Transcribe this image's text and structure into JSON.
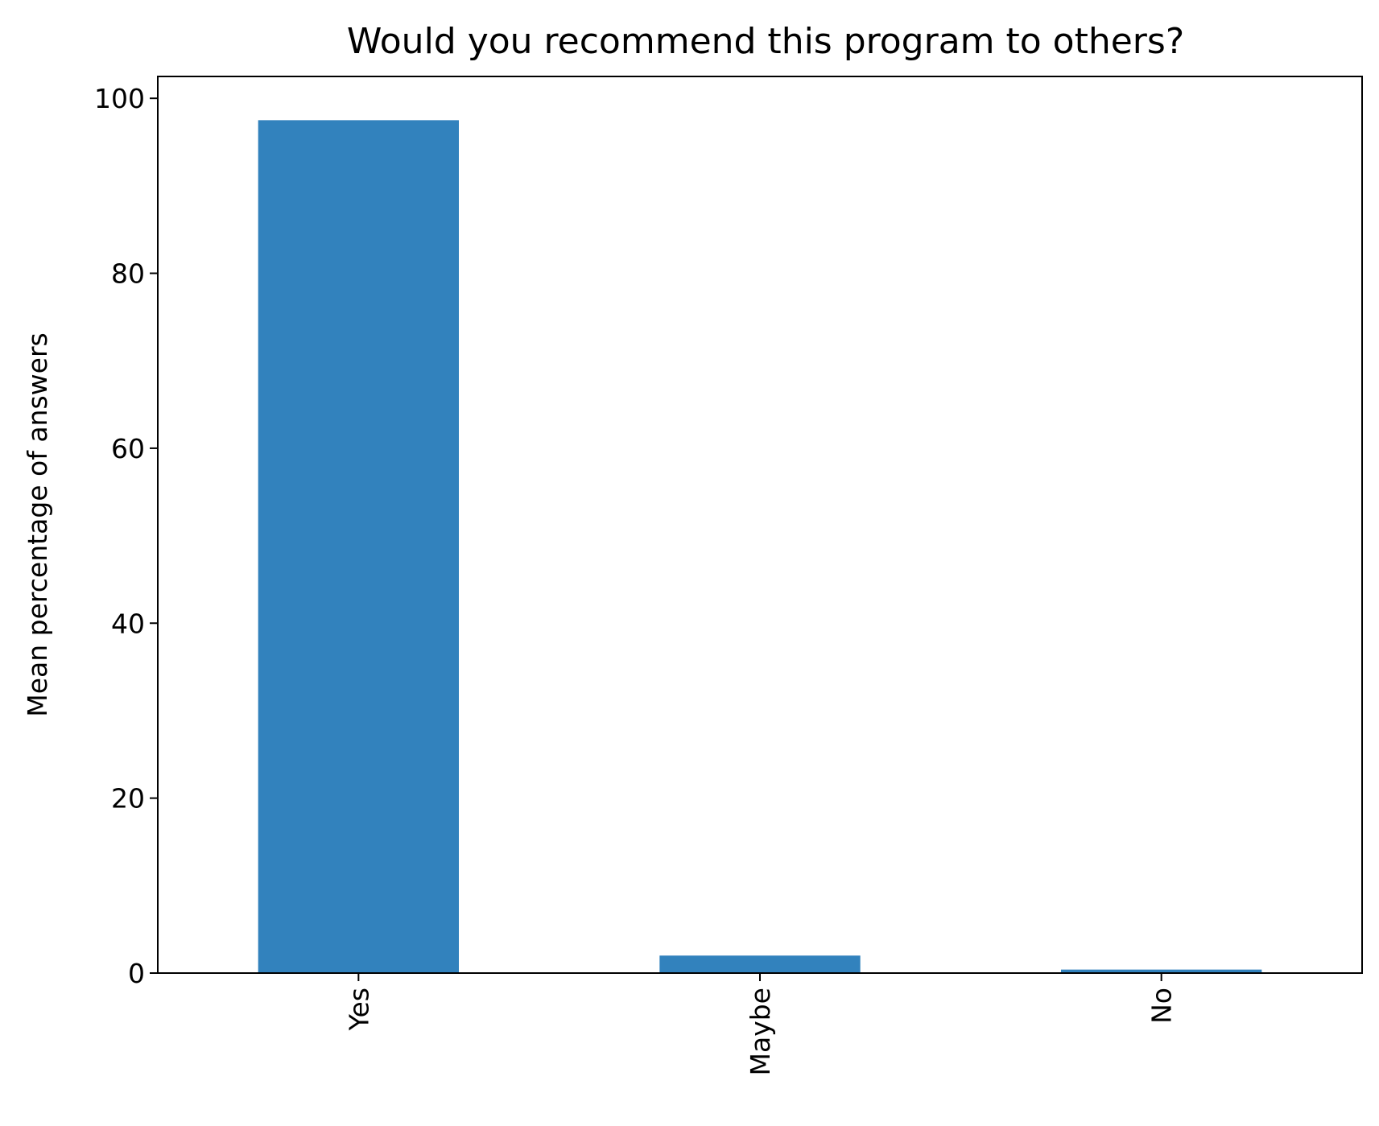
{
  "chart_data": {
    "type": "bar",
    "title": "Would you recommend this program to others?",
    "xlabel": "",
    "ylabel": "Mean percentage of answers",
    "categories": [
      "Yes",
      "Maybe",
      "No"
    ],
    "values": [
      97.5,
      2.0,
      0.4
    ],
    "ylim": [
      0,
      102.5
    ],
    "yticks": [
      0,
      20,
      40,
      60,
      80,
      100
    ],
    "grid": false,
    "bar_color": "#3282bd",
    "xtick_rotation": "vertical"
  }
}
